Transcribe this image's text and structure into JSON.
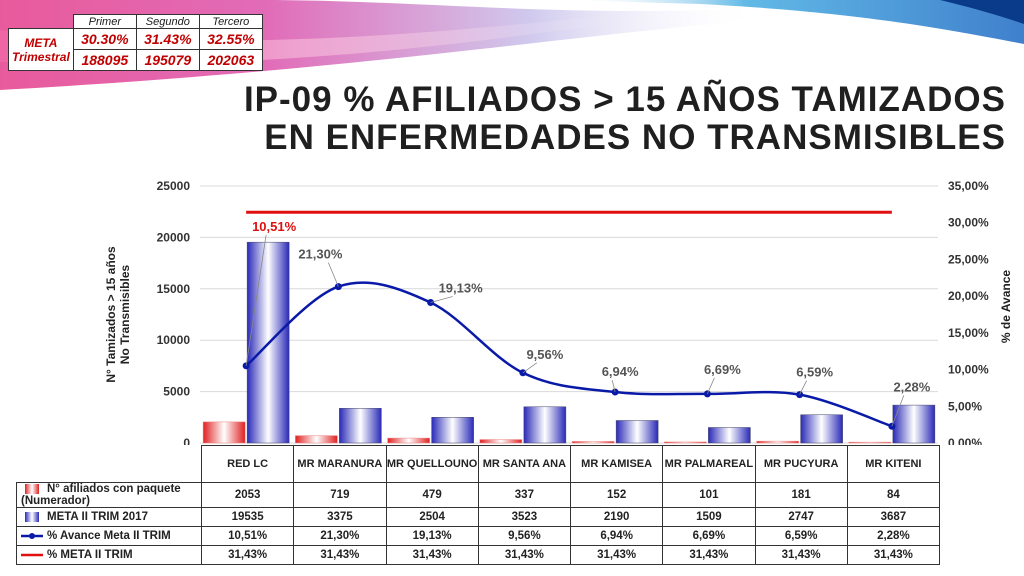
{
  "meta_trimestral": {
    "label": "META Trimestral",
    "headers": [
      "Primer",
      "Segundo",
      "Tercero"
    ],
    "percentages": [
      "30.30%",
      "31.43%",
      "32.55%"
    ],
    "counts": [
      "188095",
      "195079",
      "202063"
    ]
  },
  "title_line1": "IP-09 % AFILIADOS > 15 AÑOS TAMIZADOS",
  "title_line2": "EN ENFERMEDADES NO TRANSMISIBLES",
  "chart_data": {
    "type": "bar",
    "categories": [
      "RED LC",
      "MR MARANURA",
      "MR QUELLOUNO",
      "MR SANTA ANA",
      "MR KAMISEA",
      "MR PALMAREAL",
      "MR PUCYURA",
      "MR KITENI"
    ],
    "ylabel": "N° Tamizados > 15 años No Transmisibles",
    "y2label": "% de Avance",
    "ylim": [
      0,
      25000
    ],
    "y2lim": [
      0,
      35
    ],
    "yticks": [
      "0",
      "5000",
      "10000",
      "15000",
      "20000",
      "25000"
    ],
    "y2ticks": [
      "0,00%",
      "5,00%",
      "10,00%",
      "15,00%",
      "20,00%",
      "25,00%",
      "30,00%",
      "35,00%"
    ],
    "grid": true,
    "series": [
      {
        "name": "N° afiliados con paquete (Numerador)",
        "axis": "left",
        "kind": "bar",
        "color": "#e02020",
        "values": [
          2053,
          719,
          479,
          337,
          152,
          101,
          181,
          84
        ],
        "display": [
          "2053",
          "719",
          "479",
          "337",
          "152",
          "101",
          "181",
          "84"
        ]
      },
      {
        "name": "META II TRIM 2017",
        "axis": "left",
        "kind": "bar",
        "color": "#2a2ab8",
        "values": [
          19535,
          3375,
          2504,
          3523,
          2190,
          1509,
          2747,
          3687
        ],
        "display": [
          "19535",
          "3375",
          "2504",
          "3523",
          "2190",
          "1509",
          "2747",
          "3687"
        ]
      },
      {
        "name": "% Avance Meta II TRIM",
        "axis": "right",
        "kind": "line",
        "color": "#0a1aa8",
        "values": [
          10.51,
          21.3,
          19.13,
          9.56,
          6.94,
          6.69,
          6.59,
          2.28
        ],
        "display": [
          "10,51%",
          "21,30%",
          "19,13%",
          "9,56%",
          "6,94%",
          "6,69%",
          "6,59%",
          "2,28%"
        ]
      },
      {
        "name": "% META II TRIM",
        "axis": "right",
        "kind": "line",
        "color": "#e01010",
        "values": [
          31.43,
          31.43,
          31.43,
          31.43,
          31.43,
          31.43,
          31.43,
          31.43
        ],
        "display": [
          "31,43%",
          "31,43%",
          "31,43%",
          "31,43%",
          "31,43%",
          "31,43%",
          "31,43%",
          "31,43%"
        ]
      }
    ]
  }
}
